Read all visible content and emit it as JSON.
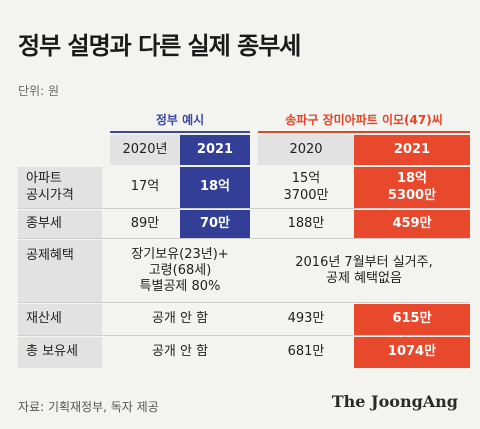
{
  "title": "정부 설명과 다른 실제 종부세",
  "unit": "단위: 원",
  "groups": {
    "gov": "정부 예시",
    "apt": "송파구 장미아파트 이모(47)씨"
  },
  "years": {
    "gov_2020": "2020년",
    "gov_2021": "2021",
    "apt_2020": "2020",
    "apt_2021": "2021"
  },
  "rows": [
    {
      "label": "아파트\n공시가격",
      "gov_2020": "17억",
      "gov_2021": "18억",
      "apt_2020": "15억\n3700만",
      "apt_2021": "18억\n5300만"
    },
    {
      "label": "종부세",
      "gov_2020": "89만",
      "gov_2021": "70만",
      "apt_2020": "188만",
      "apt_2021": "459만"
    },
    {
      "label": "공제혜택",
      "gov_merged": "장기보유(23년)+\n고령(68세)\n특별공제 80%",
      "apt_merged": "2016년 7월부터 실거주,\n공제 혜택없음"
    },
    {
      "label": "재산세",
      "gov_merged": "공개 안 함",
      "apt_2020": "493만",
      "apt_2021": "615만"
    },
    {
      "label": "총 보유세",
      "gov_merged": "공개 안 함",
      "apt_2020": "681만",
      "apt_2021": "1074만"
    }
  ],
  "source": "자료: 기획재정부, 독자 제공",
  "brand": "The JoongAng",
  "colors": {
    "gov_accent": "#333f97",
    "apt_accent": "#e8482c",
    "background": "#f3f3ef",
    "header_gray": "#e2e2e2"
  }
}
